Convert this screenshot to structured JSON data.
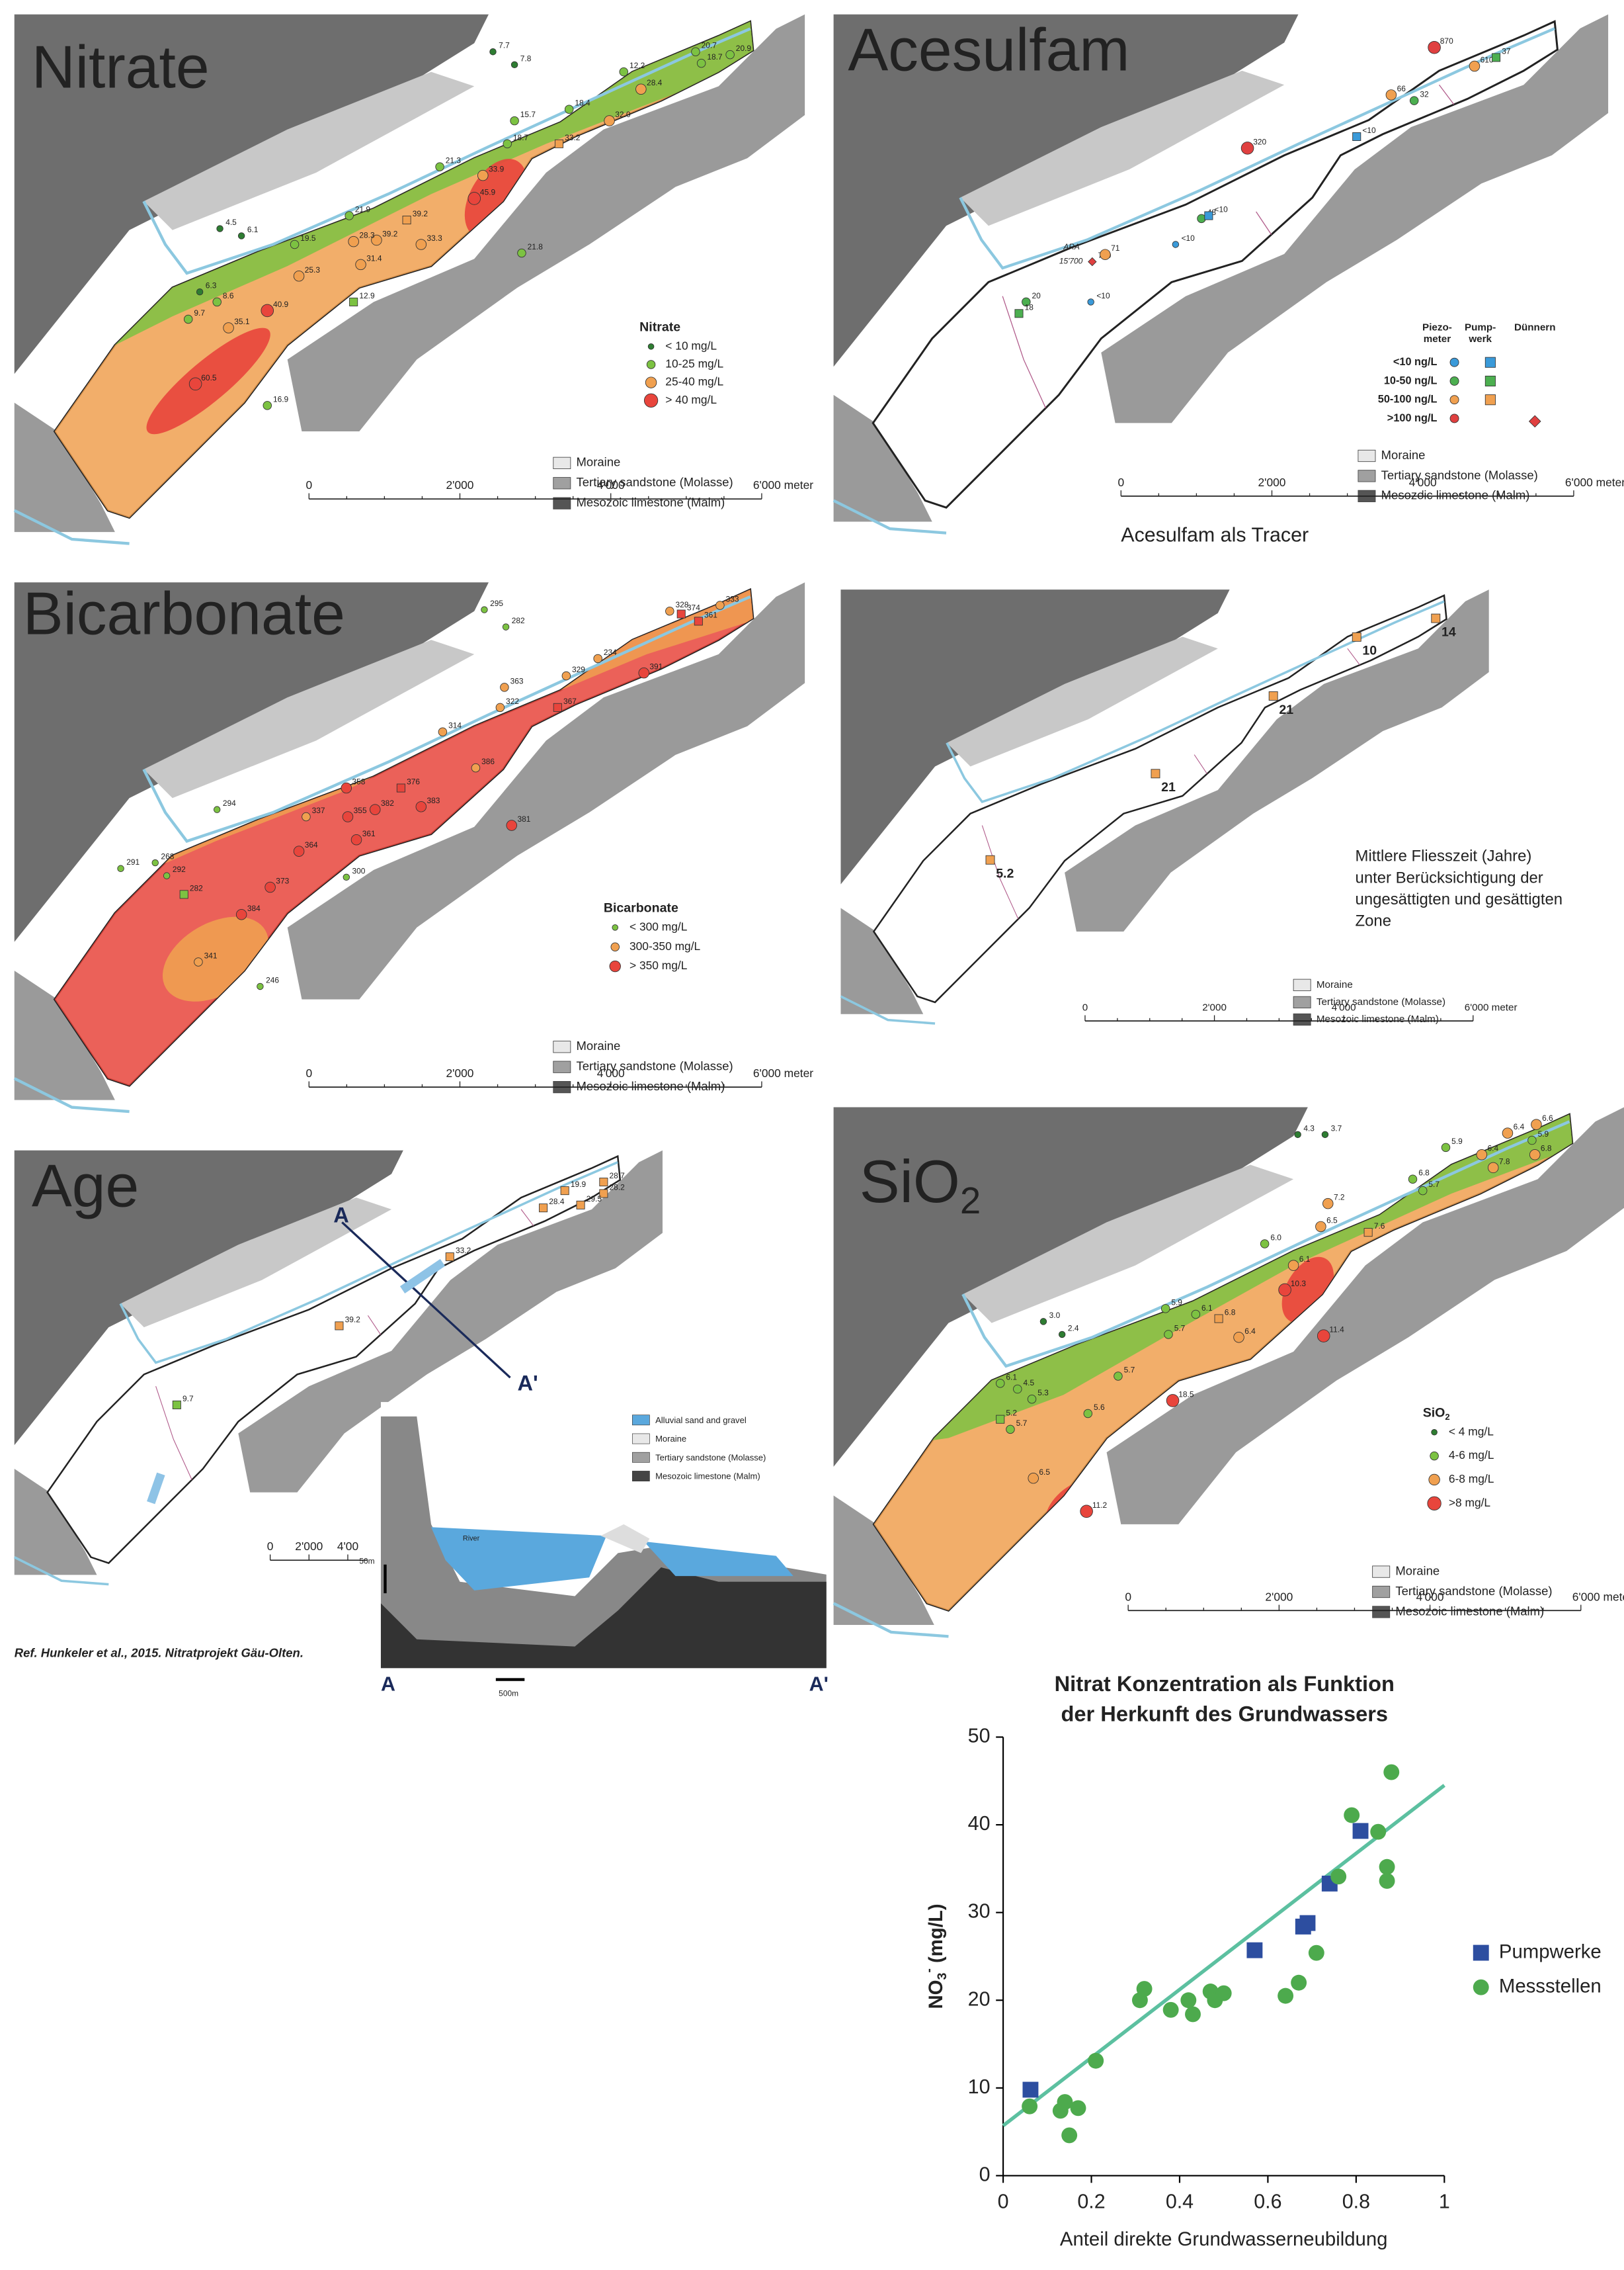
{
  "maps": [
    {
      "title": "Nitrate",
      "legend": {
        "title": "Nitrate",
        "items": [
          "< 10 mg/L",
          "10-25 mg/L",
          "25-40 mg/L",
          "> 40 mg/L"
        ]
      },
      "colors": [
        "#2e7d32",
        "#7cc242",
        "#f0a050",
        "#e8453c"
      ],
      "labels": [
        "7.7",
        "7.8",
        "20.7",
        "20.9",
        "18.7",
        "12.2",
        "28.4",
        "18.4",
        "32.0",
        "15.7",
        "18.7",
        "33.2",
        "21.3",
        "33.9",
        "45.9",
        "21.8",
        "21.9",
        "19.5",
        "39.2",
        "39.2",
        "28.3",
        "31.4",
        "33.3",
        "25.3",
        "4.5",
        "6.1",
        "8.6",
        "9.7",
        "6.3",
        "12.9",
        "40.9",
        "35.1",
        "60.5",
        "16.9"
      ],
      "geology": [
        "Moraine",
        "Tertiary sandstone (Molasse)",
        "Mesozoic limestone (Malm)"
      ],
      "scale": [
        "0",
        "2'000",
        "4'000",
        "6'000 meter"
      ]
    },
    {
      "title": "Acesulfam",
      "legend": {
        "headers": [
          "Piezo-",
          "meter",
          "Pump-",
          "werk",
          "Dünnern"
        ],
        "items": [
          "<10 ng/L",
          "10-50 ng/L",
          "50-100 ng/L",
          ">100 ng/L"
        ]
      },
      "colors": [
        "#3a9ad9",
        "#4caf50",
        "#f0a050",
        "#e04040"
      ],
      "labels": [
        "870",
        "610",
        "37",
        "66",
        "32",
        "<10",
        "320",
        "48",
        "<10",
        "<10",
        "ARA",
        "15'700",
        "700",
        "71",
        "20",
        "18",
        "<10"
      ],
      "geology": [
        "Moraine",
        "Tertiary sandstone (Molasse)",
        "Mesozoic limestone (Malm)"
      ],
      "scale": [
        "0",
        "2'000",
        "4'000",
        "6'000 meter"
      ],
      "caption": "Acesulfam als Tracer"
    },
    {
      "title": "Bicarbonate",
      "legend": {
        "title": "Bicarbonate",
        "items": [
          "< 300 mg/L",
          "300-350 mg/L",
          "> 350 mg/L"
        ]
      },
      "colors": [
        "#7cc242",
        "#f0a050",
        "#e8453c"
      ],
      "labels": [
        "295",
        "282",
        "328",
        "333",
        "361",
        "374",
        "363",
        "322",
        "329",
        "234",
        "391",
        "367",
        "314",
        "386",
        "358",
        "376",
        "382",
        "355",
        "383",
        "361",
        "337",
        "364",
        "294",
        "381",
        "291",
        "268",
        "292",
        "282",
        "300",
        "373",
        "384",
        "341",
        "246"
      ],
      "geology": [
        "Moraine",
        "Tertiary sandstone (Molasse)",
        "Mesozoic limestone (Malm)"
      ],
      "scale": [
        "0",
        "2'000",
        "4'000",
        "6'000 meter"
      ]
    },
    {
      "note": [
        "Mittlere Fliesszeit (Jahre)",
        "unter Berücksichtigung der",
        "ungesättigten und gesättigten",
        "Zone"
      ],
      "colors": [
        "#f0a050"
      ],
      "labels": [
        "14",
        "10",
        "21",
        "21",
        "5.2"
      ],
      "geology": [
        "Moraine",
        "Tertiary sandstone (Molasse)",
        "Mesozoic limestone (Malm)"
      ],
      "scale": [
        "0",
        "2'000",
        "4'000",
        "6'000 meter"
      ]
    },
    {
      "title": "Age",
      "section_marks": [
        "A",
        "A'"
      ],
      "colors": [
        "#f0a050",
        "#7cc242"
      ],
      "labels": [
        "19.9",
        "28.7",
        "28.2",
        "28.4",
        "29.5",
        "33.2",
        "39.2",
        "9.7"
      ],
      "scale": [
        "0",
        "2'000",
        "4'00"
      ],
      "reference": "Ref. Hunkeler et al., 2015. Nitratprojekt Gäu-Olten."
    },
    {
      "title": "SiO",
      "title_sub": "2",
      "legend": {
        "title": "SiO",
        "title_sub": "2",
        "items": [
          "< 4 mg/L",
          "4-6 mg/L",
          "6-8 mg/L",
          ">8 mg/L"
        ]
      },
      "colors": [
        "#2e7d32",
        "#7cc242",
        "#f0a050",
        "#e8453c"
      ],
      "labels": [
        "4.3",
        "3.7",
        "6.6",
        "6.4",
        "5.9",
        "6.8",
        "6.4",
        "5.9",
        "7.8",
        "5.7",
        "6.8",
        "7.2",
        "6.5",
        "7.6",
        "6.0",
        "6.1",
        "10.3",
        "11.4",
        "5.9",
        "6.1",
        "6.8",
        "5.7",
        "6.4",
        "3.0",
        "2.4",
        "5.7",
        "18.5",
        "5.6",
        "6.1",
        "4.5",
        "5.3",
        "5.2",
        "5.7",
        "6.5",
        "11.2"
      ],
      "geology": [
        "Moraine",
        "Tertiary sandstone (Molasse)",
        "Mesozoic limestone (Malm)"
      ],
      "scale": [
        "0",
        "2'000",
        "4'000",
        "6'000 meter"
      ]
    }
  ],
  "cross_section": {
    "legend": [
      "Alluvial sand and gravel",
      "Moraine",
      "Tertiary sandstone (Molasse)",
      "Mesozoic limestone (Malm)"
    ],
    "river": "River",
    "vertical_scale": "50m",
    "horizontal_scale": "500m",
    "ends": [
      "A",
      "A'"
    ]
  },
  "chart_data": {
    "type": "scatter",
    "title": [
      "Nitrat Konzentration als Funktion",
      "der Herkunft des Grundwassers"
    ],
    "x_label": "Anteil direkte Grundwasserneubildung",
    "y_label": {
      "main": "NO",
      "sub": "3",
      "sup": "-",
      "unit": " (mg/L)"
    },
    "xlim": [
      0,
      1
    ],
    "xticks": [
      0,
      0.2,
      0.4,
      0.6,
      0.8,
      1
    ],
    "ylim": [
      0,
      50
    ],
    "yticks": [
      0,
      10,
      20,
      30,
      40,
      50
    ],
    "series": [
      {
        "name": "Pumpwerke",
        "color": "#2d4ea0",
        "marker": "square",
        "x": [
          0.062,
          0.57,
          0.68,
          0.69,
          0.74,
          0.81
        ],
        "values": [
          9.8,
          25.7,
          28.4,
          28.8,
          33.3,
          39.3
        ]
      },
      {
        "name": "Messstellen",
        "color": "#4daa4d",
        "marker": "circle",
        "x": [
          0.06,
          0.13,
          0.14,
          0.17,
          0.15,
          0.21,
          0.31,
          0.32,
          0.38,
          0.42,
          0.43,
          0.47,
          0.48,
          0.5,
          0.64,
          0.67,
          0.71,
          0.76,
          0.79,
          0.85,
          0.87,
          0.87,
          0.88
        ],
        "values": [
          7.9,
          7.4,
          8.4,
          7.7,
          4.6,
          13.1,
          20,
          21.3,
          18.9,
          20,
          18.4,
          21,
          20,
          20.8,
          20.5,
          22,
          25.4,
          34.1,
          41.1,
          39.2,
          35.2,
          33.6,
          46
        ]
      }
    ],
    "fit_line": {
      "color": "#5cc0a0",
      "x": [
        0,
        1
      ],
      "values": [
        5.7,
        44.5
      ]
    }
  }
}
